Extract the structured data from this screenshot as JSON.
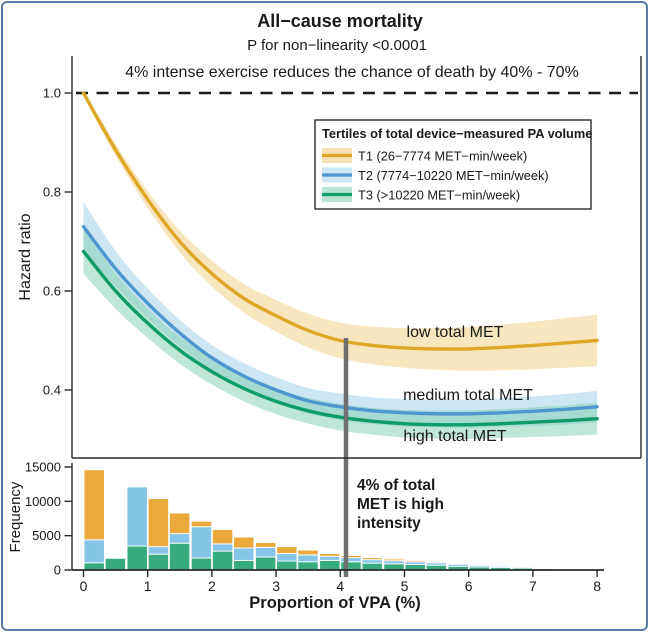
{
  "figure": {
    "title": "All−cause mortality",
    "subtitle": "P for non−linearity <0.0001",
    "red_annotation": "4% intense exercise reduces the chance of death by 40% - 70%",
    "gray_annotation": [
      "4% of total",
      "MET is high",
      "intensity"
    ]
  },
  "legend": {
    "title": "Tertiles of total device−measured PA volume",
    "items": [
      {
        "label": "T1 (26−7774 MET−min/week)",
        "line": "#DFA727",
        "fill": "#F2D9A0"
      },
      {
        "label": "T2 (7774−10220 MET−min/week)",
        "line": "#4E97CE",
        "fill": "#C3E0F2"
      },
      {
        "label": "T3 (>10220 MET−min/week)",
        "line": "#0E9C68",
        "fill": "#A8DCC8"
      }
    ]
  },
  "axes": {
    "main_y_title": "Hazard ratio",
    "hist_y_title": "Frequency",
    "x_title": "Proportion of VPA (%)",
    "main_y": [
      {
        "label": "1.0",
        "v": 1.0
      },
      {
        "label": "0.8",
        "v": 0.8
      },
      {
        "label": "0.6",
        "v": 0.6
      },
      {
        "label": "0.4",
        "v": 0.4
      }
    ],
    "hist_y": [
      {
        "label": "0",
        "v": 0
      },
      {
        "label": "5000",
        "v": 5000
      },
      {
        "label": "10000",
        "v": 10000
      },
      {
        "label": "15000",
        "v": 15000
      }
    ],
    "x": [
      {
        "label": "0",
        "v": 0
      },
      {
        "label": "1",
        "v": 1
      },
      {
        "label": "2",
        "v": 2
      },
      {
        "label": "3",
        "v": 3
      },
      {
        "label": "4",
        "v": 4
      },
      {
        "label": "5",
        "v": 5
      },
      {
        "label": "6",
        "v": 6
      },
      {
        "label": "7",
        "v": 7
      },
      {
        "label": "8",
        "v": 8
      }
    ]
  },
  "colors": {
    "red": "#D93232",
    "gray": "#757575",
    "axis": "#2b2b2b",
    "frame": "#5B79A6",
    "dashed_reference": "#1a1a1a"
  },
  "chart_data": [
    {
      "type": "line",
      "title": "All−cause mortality",
      "xlabel": "Proportion of VPA (%)",
      "ylabel": "Hazard ratio",
      "xlim": [
        0,
        8
      ],
      "ylim": [
        0.26,
        1.07
      ],
      "grid": false,
      "legend_position": "top-right-inside",
      "reference_line": {
        "y": 1.0,
        "style": "dashed"
      },
      "x": [
        0,
        0.5,
        1,
        1.5,
        2,
        2.5,
        3,
        3.5,
        4,
        4.5,
        5,
        5.5,
        6,
        6.5,
        7,
        7.5,
        8
      ],
      "series": [
        {
          "id": "t1",
          "name": "T1 (26−7774 MET−min/week)",
          "label": "low total MET",
          "color": "#DFA727",
          "fill": "#F0CE7E",
          "hr": [
            1.0,
            0.885,
            0.785,
            0.7,
            0.635,
            0.585,
            0.55,
            0.52,
            0.5,
            0.49,
            0.485,
            0.483,
            0.483,
            0.486,
            0.49,
            0.495,
            0.5
          ],
          "ci": [
            0.006,
            0.012,
            0.017,
            0.022,
            0.026,
            0.029,
            0.032,
            0.034,
            0.036,
            0.038,
            0.04,
            0.042,
            0.044,
            0.046,
            0.048,
            0.05,
            0.052
          ]
        },
        {
          "id": "t2",
          "name": "T2 (7774−10220 MET−min/week)",
          "label": "medium total MET",
          "color": "#4E97CE",
          "fill": "#9CCEEA",
          "hr": [
            0.73,
            0.645,
            0.575,
            0.515,
            0.465,
            0.428,
            0.4,
            0.378,
            0.366,
            0.358,
            0.354,
            0.352,
            0.352,
            0.354,
            0.357,
            0.361,
            0.366
          ],
          "ci": [
            0.05,
            0.036,
            0.03,
            0.027,
            0.026,
            0.026,
            0.026,
            0.026,
            0.027,
            0.027,
            0.028,
            0.028,
            0.029,
            0.029,
            0.03,
            0.031,
            0.032
          ]
        },
        {
          "id": "t3",
          "name": "T3 (>10220 MET−min/week)",
          "label": "high total MET",
          "color": "#0E9C68",
          "fill": "#7FD0AF",
          "hr": [
            0.68,
            0.6,
            0.535,
            0.48,
            0.437,
            0.403,
            0.377,
            0.358,
            0.345,
            0.337,
            0.332,
            0.33,
            0.33,
            0.332,
            0.335,
            0.338,
            0.342
          ],
          "ci": [
            0.045,
            0.036,
            0.03,
            0.027,
            0.026,
            0.026,
            0.026,
            0.026,
            0.027,
            0.027,
            0.028,
            0.028,
            0.029,
            0.029,
            0.03,
            0.031,
            0.032
          ]
        }
      ],
      "vertical_marker": {
        "x": 4.09,
        "label": "4% of total MET is high intensity"
      }
    },
    {
      "type": "bar",
      "stacked": true,
      "xlabel": "Proportion of VPA (%)",
      "ylabel": "Frequency",
      "xlim": [
        0,
        8
      ],
      "ylim": [
        0,
        15000
      ],
      "bin_width": 0.3333,
      "colors": {
        "green": "#36AB7D",
        "blue": "#85C6E8",
        "orange": "#E9A93D"
      },
      "series_names": {
        "green": "T3 (>10220 MET−min/week)",
        "blue": "T2 (7774−10220 MET−min/week)",
        "orange": "T1 (26−7774 MET−min/week)"
      },
      "bins": [
        {
          "x0": 0.0,
          "green": 1050,
          "blue": 3350,
          "orange": 10200
        },
        {
          "x0": 0.33,
          "green": 1700,
          "blue": 0,
          "orange": 0
        },
        {
          "x0": 0.67,
          "green": 3500,
          "blue": 8600,
          "orange": 0
        },
        {
          "x0": 1.0,
          "green": 2300,
          "blue": 1100,
          "orange": 7000
        },
        {
          "x0": 1.33,
          "green": 3900,
          "blue": 1400,
          "orange": 3000
        },
        {
          "x0": 1.67,
          "green": 1750,
          "blue": 4550,
          "orange": 800
        },
        {
          "x0": 2.0,
          "green": 2750,
          "blue": 1050,
          "orange": 2100
        },
        {
          "x0": 2.33,
          "green": 1400,
          "blue": 1800,
          "orange": 1600
        },
        {
          "x0": 2.67,
          "green": 1900,
          "blue": 1400,
          "orange": 700
        },
        {
          "x0": 3.0,
          "green": 1300,
          "blue": 1100,
          "orange": 1000
        },
        {
          "x0": 3.33,
          "green": 1200,
          "blue": 1000,
          "orange": 700
        },
        {
          "x0": 3.67,
          "green": 1400,
          "blue": 600,
          "orange": 400
        },
        {
          "x0": 4.0,
          "green": 1200,
          "blue": 600,
          "orange": 300
        },
        {
          "x0": 4.33,
          "green": 1000,
          "blue": 500,
          "orange": 300
        },
        {
          "x0": 4.67,
          "green": 900,
          "blue": 450,
          "orange": 250
        },
        {
          "x0": 5.0,
          "green": 800,
          "blue": 400,
          "orange": 200
        },
        {
          "x0": 5.33,
          "green": 700,
          "blue": 350,
          "orange": 150
        },
        {
          "x0": 5.67,
          "green": 550,
          "blue": 300,
          "orange": 100
        },
        {
          "x0": 6.0,
          "green": 450,
          "blue": 250,
          "orange": 80
        },
        {
          "x0": 6.33,
          "green": 350,
          "blue": 200,
          "orange": 60
        },
        {
          "x0": 6.67,
          "green": 280,
          "blue": 160,
          "orange": 40
        },
        {
          "x0": 7.0,
          "green": 220,
          "blue": 120,
          "orange": 30
        },
        {
          "x0": 7.33,
          "green": 160,
          "blue": 90,
          "orange": 20
        },
        {
          "x0": 7.67,
          "green": 110,
          "blue": 70,
          "orange": 20
        }
      ]
    }
  ]
}
